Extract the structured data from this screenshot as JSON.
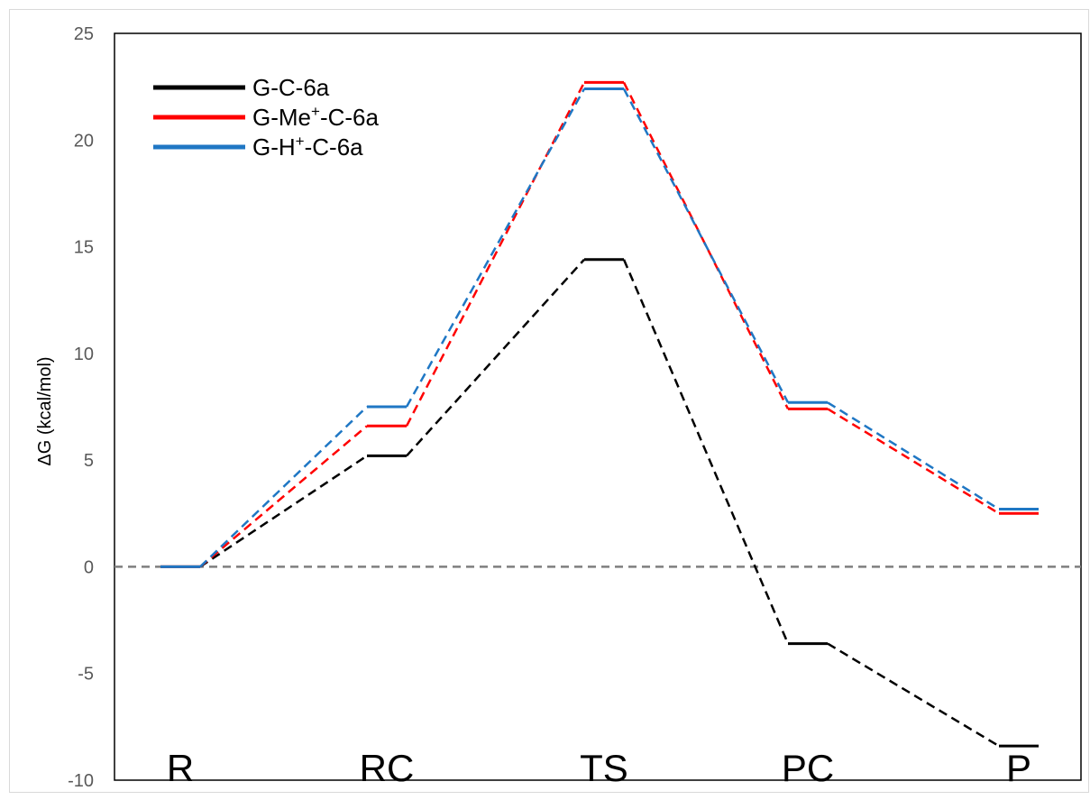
{
  "chart_data": {
    "type": "line",
    "title": "",
    "xlabel": "",
    "ylabel": "ΔG (kcal/mol)",
    "ylim": [
      -10,
      25
    ],
    "yticks": [
      -10,
      -5,
      0,
      5,
      10,
      15,
      20,
      25
    ],
    "categories": [
      "R",
      "RC",
      "TS",
      "PC",
      "P"
    ],
    "grid": false,
    "zero_line": true,
    "legend_position": "top-left",
    "series": [
      {
        "name": "G-C-6a",
        "legend_base": "G-C-6a",
        "legend_sup": "",
        "legend_tail": "",
        "color": "#000000",
        "values": [
          0,
          5.2,
          14.4,
          -3.6,
          -8.4
        ]
      },
      {
        "name": "G-Me⁺-C-6a",
        "legend_base": "G-Me",
        "legend_sup": "+",
        "legend_tail": "-C-6a",
        "color": "#ff0000",
        "values": [
          0,
          6.6,
          22.7,
          7.4,
          2.5
        ]
      },
      {
        "name": "G-H⁺-C-6a",
        "legend_base": "G-H",
        "legend_sup": "+",
        "legend_tail": "-C-6a",
        "color": "#1f77c4",
        "values": [
          0,
          7.5,
          22.4,
          7.7,
          2.7
        ]
      }
    ]
  }
}
